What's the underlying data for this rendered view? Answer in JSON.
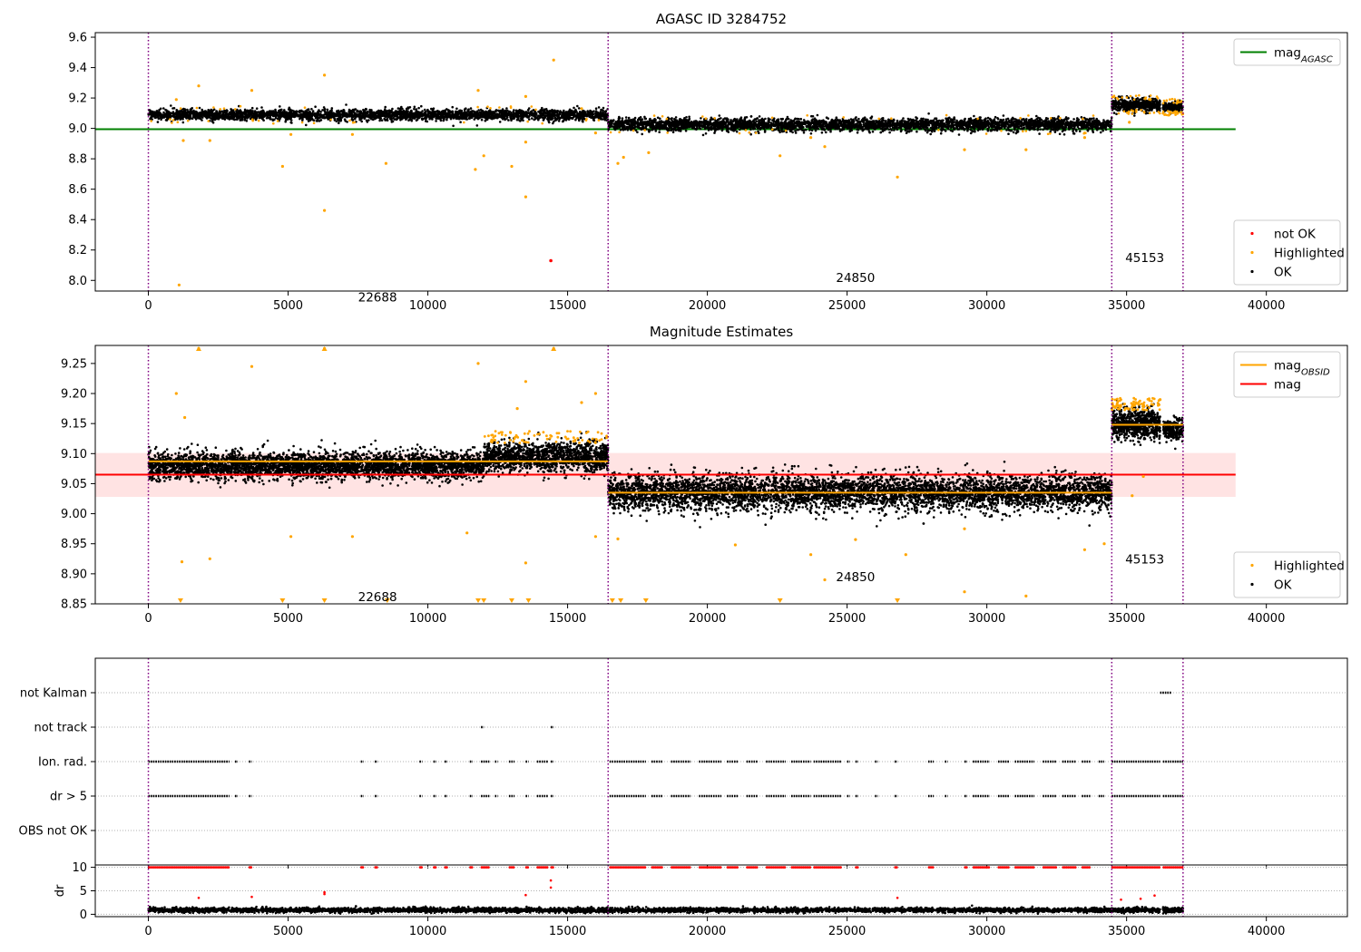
{
  "chart_data": [
    {
      "type": "scatter",
      "title": "AGASC ID 3284752",
      "xlim": [
        -1900,
        42900
      ],
      "ylim": [
        7.93,
        9.63
      ],
      "xticks": [
        0,
        5000,
        10000,
        15000,
        20000,
        25000,
        30000,
        35000,
        40000
      ],
      "yticks": [
        8.0,
        8.2,
        8.4,
        8.6,
        8.8,
        9.0,
        9.2,
        9.4,
        9.6
      ],
      "ytick_labels": [
        "8.0",
        "8.2",
        "8.4",
        "8.6",
        "8.8",
        "9.0",
        "9.2",
        "9.4",
        "9.6"
      ],
      "obsid_boundaries": [
        0,
        16450,
        34470,
        37020
      ],
      "obsid_labels": [
        {
          "text": "22688",
          "x": 8200,
          "y": 7.89
        },
        {
          "text": "24850",
          "x": 25300,
          "y": 8.02
        },
        {
          "text": "45153",
          "x": 35650,
          "y": 8.15
        }
      ],
      "lines": [
        {
          "name": "mag",
          "sub": "AGASC",
          "color": "#008000",
          "x": [
            -1900,
            38900
          ],
          "y": [
            8.995,
            8.995
          ]
        }
      ],
      "ok_segments": [
        {
          "x": [
            0,
            16450
          ],
          "mean": 9.09,
          "spread": 0.035,
          "count": 3000
        },
        {
          "x": [
            16450,
            34470
          ],
          "mean": 9.025,
          "spread": 0.04,
          "count": 3500
        },
        {
          "x": [
            34470,
            36200
          ],
          "mean": 9.155,
          "spread": 0.04,
          "count": 500
        },
        {
          "x": [
            36300,
            37020
          ],
          "mean": 9.14,
          "spread": 0.03,
          "count": 200
        }
      ],
      "highlighted": [
        [
          1000,
          9.19
        ],
        [
          1100,
          7.97
        ],
        [
          1250,
          8.92
        ],
        [
          1800,
          9.28
        ],
        [
          2200,
          8.92
        ],
        [
          3700,
          9.25
        ],
        [
          4800,
          8.75
        ],
        [
          5100,
          8.96
        ],
        [
          6300,
          9.35
        ],
        [
          6300,
          8.46
        ],
        [
          7300,
          8.96
        ],
        [
          8500,
          8.77
        ],
        [
          11700,
          8.73
        ],
        [
          11800,
          9.25
        ],
        [
          12000,
          8.82
        ],
        [
          13000,
          8.75
        ],
        [
          13500,
          9.21
        ],
        [
          13500,
          8.91
        ],
        [
          13500,
          8.55
        ],
        [
          14500,
          9.45
        ],
        [
          15500,
          9.13
        ],
        [
          16000,
          8.97
        ],
        [
          16800,
          8.77
        ],
        [
          17000,
          8.81
        ],
        [
          17900,
          8.84
        ],
        [
          22600,
          8.82
        ],
        [
          23700,
          8.94
        ],
        [
          24200,
          8.88
        ],
        [
          26800,
          8.68
        ],
        [
          29200,
          8.86
        ],
        [
          31400,
          8.86
        ],
        [
          33500,
          8.94
        ],
        [
          35100,
          9.04
        ]
      ],
      "not_ok": [
        [
          14400,
          8.13
        ]
      ],
      "legends": [
        {
          "position": "top-right",
          "entries": [
            {
              "label": "mag",
              "sub": "AGASC",
              "kind": "line",
              "color": "#008000"
            }
          ]
        },
        {
          "position": "lower-right",
          "entries": [
            {
              "label": "not OK",
              "kind": "dot",
              "color": "#ff0000"
            },
            {
              "label": "Highlighted",
              "kind": "dot",
              "color": "#ffa500"
            },
            {
              "label": "OK",
              "kind": "dot",
              "color": "#000000"
            }
          ]
        }
      ]
    },
    {
      "type": "scatter",
      "title": "Magnitude Estimates",
      "xlim": [
        -1900,
        42900
      ],
      "ylim": [
        8.85,
        9.28
      ],
      "xticks": [
        0,
        5000,
        10000,
        15000,
        20000,
        25000,
        30000,
        35000,
        40000
      ],
      "yticks": [
        8.85,
        8.9,
        8.95,
        9.0,
        9.05,
        9.1,
        9.15,
        9.2,
        9.25
      ],
      "ytick_labels": [
        "8.85",
        "8.90",
        "8.95",
        "9.00",
        "9.05",
        "9.10",
        "9.15",
        "9.20",
        "9.25"
      ],
      "obsid_boundaries": [
        0,
        16450,
        34470,
        37020
      ],
      "obsid_labels": [
        {
          "text": "22688",
          "x": 8200,
          "y": 8.862
        },
        {
          "text": "24850",
          "x": 25300,
          "y": 8.895
        },
        {
          "text": "45153",
          "x": 35650,
          "y": 8.925
        }
      ],
      "band": {
        "color": "#ffdede",
        "x": [
          -1900,
          38900
        ],
        "y": [
          9.028,
          9.101
        ]
      },
      "lines": [
        {
          "name": "mag",
          "sub": "OBSID",
          "color": "#ffa500",
          "x": [
            0,
            16450
          ],
          "y": [
            9.087,
            9.087
          ]
        },
        {
          "name": "mag",
          "sub": "OBSID",
          "color": "#ffa500",
          "x": [
            16450,
            34470
          ],
          "y": [
            9.035,
            9.035
          ]
        },
        {
          "name": "mag",
          "sub": "OBSID",
          "color": "#ffa500",
          "x": [
            34470,
            37020
          ],
          "y": [
            9.148,
            9.148
          ]
        },
        {
          "name": "mag",
          "color": "#ff0000",
          "x": [
            -1900,
            38900
          ],
          "y": [
            9.065,
            9.065
          ]
        }
      ],
      "ok_segments": [
        {
          "x": [
            0,
            12000
          ],
          "mean": 9.08,
          "spread": 0.022,
          "count": 3600
        },
        {
          "x": [
            12000,
            16450
          ],
          "mean": 9.095,
          "spread": 0.025,
          "count": 1400
        },
        {
          "x": [
            16450,
            34470
          ],
          "mean": 9.035,
          "spread": 0.03,
          "count": 5200
        },
        {
          "x": [
            34470,
            36200
          ],
          "mean": 9.15,
          "spread": 0.025,
          "count": 700
        },
        {
          "x": [
            36300,
            37020
          ],
          "mean": 9.14,
          "spread": 0.018,
          "count": 250
        }
      ],
      "highlighted": [
        [
          1000,
          9.2
        ],
        [
          1300,
          9.16
        ],
        [
          1800,
          9.275
        ],
        [
          3700,
          9.245
        ],
        [
          6300,
          9.275
        ],
        [
          11800,
          9.25
        ],
        [
          13200,
          9.175
        ],
        [
          13500,
          9.22
        ],
        [
          14500,
          9.275
        ],
        [
          15500,
          9.185
        ],
        [
          16000,
          9.2
        ],
        [
          16000,
          8.962
        ],
        [
          1200,
          8.92
        ],
        [
          2200,
          8.925
        ],
        [
          5100,
          8.962
        ],
        [
          7300,
          8.962
        ],
        [
          11400,
          8.968
        ],
        [
          13500,
          8.918
        ],
        [
          16800,
          8.958
        ],
        [
          21000,
          8.948
        ],
        [
          23700,
          8.932
        ],
        [
          24200,
          8.89
        ],
        [
          25300,
          8.957
        ],
        [
          27100,
          8.932
        ],
        [
          29200,
          8.975
        ],
        [
          29200,
          8.87
        ],
        [
          31400,
          8.863
        ],
        [
          33500,
          8.94
        ],
        [
          34200,
          8.95
        ],
        [
          35200,
          9.03
        ],
        [
          35600,
          9.062
        ],
        [
          36200,
          9.19
        ]
      ],
      "below_markers": [
        1150,
        4800,
        6300,
        8550,
        11800,
        12000,
        13000,
        13600,
        16600,
        16900,
        17800,
        22600,
        26800
      ],
      "above_markers": [
        1800,
        6300,
        14500
      ],
      "legends": [
        {
          "position": "top-right",
          "entries": [
            {
              "label": "mag",
              "sub": "OBSID",
              "kind": "line",
              "color": "#ffa500"
            },
            {
              "label": "mag",
              "kind": "line",
              "color": "#ff0000"
            }
          ]
        },
        {
          "position": "lower-right",
          "entries": [
            {
              "label": "Highlighted",
              "kind": "dot",
              "color": "#ffa500"
            },
            {
              "label": "OK",
              "kind": "dot",
              "color": "#000000"
            }
          ]
        }
      ]
    },
    {
      "type": "scatter",
      "title": "",
      "xlim": [
        -1900,
        42900
      ],
      "categories": [
        "not Kalman",
        "not track",
        "Ion. rad.",
        "dr > 5",
        "OBS not OK"
      ],
      "obsid_boundaries": [
        0,
        16450,
        34470,
        37020
      ],
      "flag_ranges": {
        "not Kalman": [
          [
            36200,
            36600
          ]
        ],
        "not track": [
          [
            11900,
            12000
          ],
          [
            14400,
            14500
          ]
        ],
        "Ion. rad.": [
          [
            0,
            2900
          ],
          [
            3100,
            3200
          ],
          [
            3600,
            3700
          ],
          [
            7600,
            7700
          ],
          [
            8100,
            8200
          ],
          [
            9700,
            9800
          ],
          [
            10200,
            10300
          ],
          [
            10600,
            10700
          ],
          [
            11500,
            11600
          ],
          [
            11900,
            12200
          ],
          [
            12400,
            12500
          ],
          [
            12900,
            13100
          ],
          [
            13500,
            13600
          ],
          [
            13900,
            14300
          ],
          [
            14400,
            14500
          ],
          [
            16500,
            17800
          ],
          [
            18000,
            18400
          ],
          [
            18700,
            19400
          ],
          [
            19700,
            20500
          ],
          [
            20700,
            21100
          ],
          [
            21400,
            21800
          ],
          [
            22100,
            22800
          ],
          [
            23000,
            23700
          ],
          [
            23800,
            24800
          ],
          [
            25000,
            25100
          ],
          [
            25300,
            25400
          ],
          [
            26000,
            26100
          ],
          [
            26700,
            26800
          ],
          [
            27900,
            28100
          ],
          [
            28500,
            28600
          ],
          [
            29200,
            29300
          ],
          [
            29500,
            30100
          ],
          [
            30400,
            30800
          ],
          [
            31000,
            31700
          ],
          [
            32000,
            32500
          ],
          [
            32700,
            33200
          ],
          [
            33400,
            33700
          ],
          [
            34000,
            34200
          ],
          [
            34470,
            36200
          ],
          [
            36300,
            37020
          ]
        ],
        "dr > 5": [
          [
            0,
            2900
          ],
          [
            3100,
            3200
          ],
          [
            3600,
            3700
          ],
          [
            7600,
            7700
          ],
          [
            8100,
            8200
          ],
          [
            9700,
            9800
          ],
          [
            10200,
            10300
          ],
          [
            10600,
            10700
          ],
          [
            11500,
            11600
          ],
          [
            11900,
            12200
          ],
          [
            12400,
            12500
          ],
          [
            12900,
            13100
          ],
          [
            13500,
            13600
          ],
          [
            13900,
            14300
          ],
          [
            14400,
            14500
          ],
          [
            16500,
            17800
          ],
          [
            18000,
            18400
          ],
          [
            18700,
            19400
          ],
          [
            19700,
            20500
          ],
          [
            20700,
            21100
          ],
          [
            21400,
            21800
          ],
          [
            22100,
            22800
          ],
          [
            23000,
            23700
          ],
          [
            23800,
            24800
          ],
          [
            25000,
            25100
          ],
          [
            25300,
            25400
          ],
          [
            26000,
            26100
          ],
          [
            26700,
            26800
          ],
          [
            27900,
            28100
          ],
          [
            28500,
            28600
          ],
          [
            29200,
            29300
          ],
          [
            29500,
            30100
          ],
          [
            30400,
            30800
          ],
          [
            31000,
            31700
          ],
          [
            32000,
            32500
          ],
          [
            32700,
            33200
          ],
          [
            33400,
            33700
          ],
          [
            34000,
            34200
          ],
          [
            34470,
            36200
          ],
          [
            36300,
            37020
          ]
        ],
        "OBS not OK": []
      }
    },
    {
      "type": "scatter",
      "title": "",
      "ylabel": "dr",
      "xlim": [
        -1900,
        42900
      ],
      "ylim": [
        -0.5,
        10.5
      ],
      "xticks": [
        0,
        5000,
        10000,
        15000,
        20000,
        25000,
        30000,
        35000,
        40000
      ],
      "yticks": [
        0,
        5,
        10
      ],
      "ytick_labels": [
        "0",
        "5",
        "10"
      ],
      "obsid_boundaries": [
        0,
        16450,
        34470,
        37020
      ],
      "ok_segments": [
        {
          "x": [
            0,
            36200
          ],
          "mean": 0.9,
          "spread": 0.5,
          "count": 4500
        },
        {
          "x": [
            36300,
            37020
          ],
          "mean": 0.9,
          "spread": 0.5,
          "count": 150
        }
      ],
      "clipped_ranges": [
        [
          0,
          2900
        ],
        [
          3600,
          3700
        ],
        [
          7600,
          7700
        ],
        [
          8100,
          8200
        ],
        [
          9700,
          9800
        ],
        [
          10200,
          10300
        ],
        [
          10600,
          10700
        ],
        [
          11500,
          11600
        ],
        [
          11900,
          12200
        ],
        [
          12900,
          13100
        ],
        [
          13500,
          13600
        ],
        [
          13900,
          14300
        ],
        [
          14400,
          14500
        ],
        [
          16500,
          17800
        ],
        [
          18000,
          18400
        ],
        [
          18700,
          19400
        ],
        [
          19700,
          20500
        ],
        [
          20700,
          21100
        ],
        [
          21400,
          21800
        ],
        [
          22100,
          22800
        ],
        [
          23000,
          23700
        ],
        [
          23800,
          24800
        ],
        [
          25300,
          25400
        ],
        [
          26700,
          26800
        ],
        [
          27900,
          28100
        ],
        [
          29200,
          29300
        ],
        [
          29500,
          30100
        ],
        [
          30400,
          30800
        ],
        [
          31000,
          31700
        ],
        [
          32000,
          32500
        ],
        [
          32700,
          33200
        ],
        [
          33400,
          33700
        ],
        [
          34470,
          36200
        ],
        [
          36300,
          37020
        ]
      ],
      "red_points": [
        [
          1800,
          3.5
        ],
        [
          3700,
          3.7
        ],
        [
          6300,
          4.3
        ],
        [
          6300,
          4.7
        ],
        [
          13500,
          4.1
        ],
        [
          14400,
          7.2
        ],
        [
          14400,
          5.7
        ],
        [
          26800,
          3.5
        ],
        [
          34800,
          3.1
        ],
        [
          35500,
          3.3
        ],
        [
          36000,
          4.0
        ]
      ]
    }
  ]
}
